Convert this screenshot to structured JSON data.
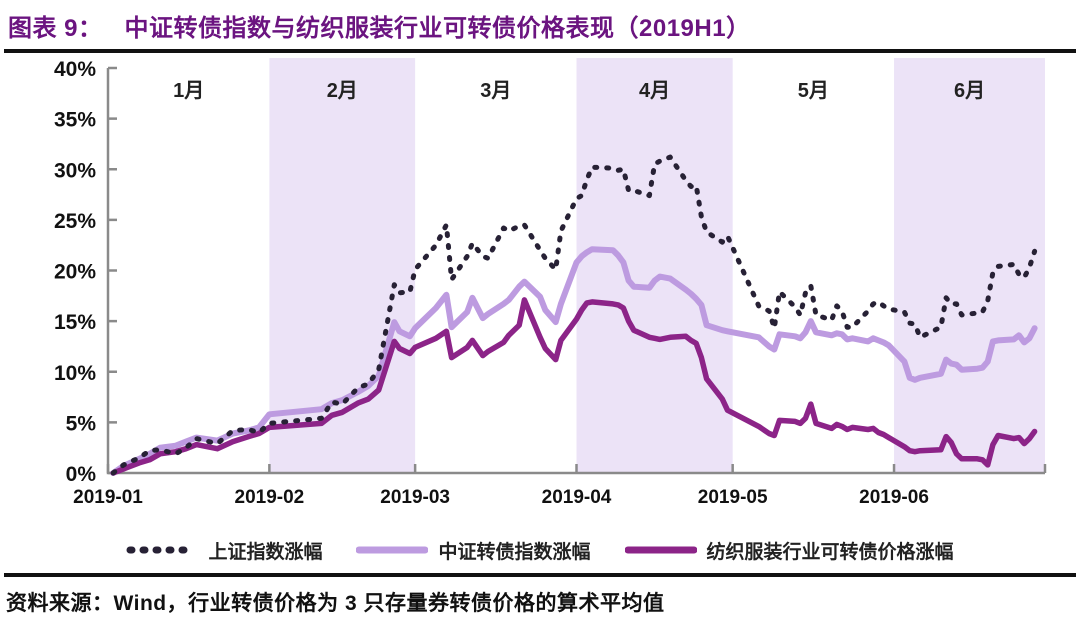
{
  "header": {
    "label": "图表 9：",
    "title": "中证转债指数与纺织服装行业可转债价格表现（2019H1）"
  },
  "chart_data": {
    "type": "line",
    "title": "中证转债指数与纺织服装行业可转债价格表现（2019H1）",
    "xlabel": "",
    "ylabel": "",
    "ylim": [
      0,
      40
    ],
    "ytick_step": 5,
    "ytick_suffix": "%",
    "grid": false,
    "legend_position": "bottom",
    "x_domain_days": [
      0,
      180
    ],
    "month_boundaries_days": [
      0,
      31,
      59,
      90,
      120,
      151,
      180
    ],
    "month_labels": [
      "1月",
      "2月",
      "3月",
      "4月",
      "5月",
      "6月"
    ],
    "x_tick_labels": [
      "2019-01",
      "2019-02",
      "2019-03",
      "2019-04",
      "2019-05",
      "2019-06"
    ],
    "shaded_band_day_ranges": [
      [
        31,
        59
      ],
      [
        90,
        120
      ],
      [
        151,
        180
      ]
    ],
    "band_color": "#ece3f7",
    "axis_color": "#8a8a8a",
    "tick_label_color": "#111111",
    "dates": [
      "01-02",
      "01-04",
      "01-07",
      "01-09",
      "01-11",
      "01-14",
      "01-16",
      "01-18",
      "01-22",
      "01-25",
      "01-28",
      "01-30",
      "02-01",
      "02-11",
      "02-13",
      "02-15",
      "02-18",
      "02-20",
      "02-22",
      "02-25",
      "02-26",
      "02-28",
      "03-01",
      "03-05",
      "03-07",
      "03-08",
      "03-11",
      "03-12",
      "03-14",
      "03-15",
      "03-18",
      "03-19",
      "03-21",
      "03-22",
      "03-25",
      "03-26",
      "03-28",
      "03-29",
      "04-01",
      "04-02",
      "04-03",
      "04-04",
      "04-08",
      "04-09",
      "04-10",
      "04-11",
      "04-12",
      "04-15",
      "04-16",
      "04-17",
      "04-19",
      "04-22",
      "04-23",
      "04-24",
      "04-25",
      "04-26",
      "04-29",
      "04-30",
      "05-06",
      "05-08",
      "05-09",
      "05-10",
      "05-13",
      "05-14",
      "05-15",
      "05-16",
      "05-17",
      "05-20",
      "05-21",
      "05-22",
      "05-23",
      "05-24",
      "05-27",
      "05-28",
      "05-29",
      "05-30",
      "05-31",
      "06-03",
      "06-04",
      "06-05",
      "06-06",
      "06-10",
      "06-11",
      "06-12",
      "06-13",
      "06-14",
      "06-17",
      "06-18",
      "06-19",
      "06-20",
      "06-21",
      "06-24",
      "06-25",
      "06-26",
      "06-27",
      "06-28"
    ],
    "series": [
      {
        "name": "上证指数涨幅",
        "color": "#272135",
        "style": "dashed",
        "width": 5,
        "values": [
          0.0,
          0.8,
          1.5,
          2.2,
          2.3,
          1.9,
          2.5,
          3.4,
          2.9,
          4.2,
          4.3,
          4.0,
          4.9,
          5.4,
          7.0,
          6.8,
          8.4,
          8.8,
          10.2,
          18.6,
          17.8,
          17.9,
          20.1,
          22.5,
          24.5,
          19.1,
          21.4,
          22.7,
          21.4,
          21.2,
          24.2,
          23.9,
          24.4,
          24.5,
          22.0,
          21.2,
          20.1,
          23.9,
          27.1,
          27.4,
          29.0,
          30.2,
          30.1,
          29.9,
          30.0,
          27.9,
          27.9,
          27.4,
          30.5,
          30.8,
          31.2,
          28.9,
          28.3,
          28.4,
          25.3,
          23.8,
          22.8,
          23.4,
          16.5,
          16.0,
          14.3,
          17.9,
          16.4,
          15.6,
          17.8,
          18.5,
          15.6,
          15.1,
          16.5,
          16.0,
          14.4,
          14.4,
          16.0,
          16.7,
          16.9,
          16.5,
          16.2,
          15.9,
          14.8,
          14.7,
          13.4,
          14.4,
          17.3,
          16.7,
          16.7,
          15.6,
          15.8,
          15.9,
          17.0,
          19.8,
          20.4,
          20.6,
          19.6,
          19.3,
          20.3,
          21.9
        ]
      },
      {
        "name": "中证转债指数涨幅",
        "color": "#bd9be0",
        "style": "solid",
        "width": 6,
        "values": [
          0.0,
          0.7,
          1.4,
          1.9,
          2.5,
          2.7,
          3.1,
          3.5,
          3.2,
          3.9,
          4.2,
          4.5,
          5.8,
          6.3,
          6.9,
          7.2,
          8.0,
          8.6,
          9.6,
          14.9,
          14.0,
          13.5,
          14.3,
          16.3,
          17.6,
          14.4,
          15.9,
          17.3,
          15.3,
          15.7,
          16.7,
          17.1,
          18.4,
          18.9,
          17.4,
          16.1,
          14.9,
          16.7,
          20.8,
          21.4,
          21.8,
          22.1,
          22.0,
          21.5,
          20.8,
          19.0,
          18.4,
          18.3,
          19.0,
          19.4,
          19.2,
          18.1,
          17.7,
          17.2,
          16.6,
          14.6,
          14.1,
          14.0,
          13.4,
          12.5,
          12.2,
          13.7,
          13.5,
          13.3,
          13.9,
          15.0,
          13.9,
          13.6,
          13.8,
          13.7,
          13.2,
          13.3,
          13.0,
          13.3,
          13.1,
          12.9,
          12.6,
          11.0,
          9.4,
          9.2,
          9.4,
          9.8,
          11.2,
          10.8,
          10.7,
          10.2,
          10.3,
          10.4,
          11.0,
          13.0,
          13.1,
          13.2,
          13.6,
          12.9,
          13.3,
          14.3
        ]
      },
      {
        "name": "纺织服装行业可转债价格涨幅",
        "color": "#8c2488",
        "style": "solid",
        "width": 5.5,
        "values": [
          0.0,
          0.4,
          1.0,
          1.3,
          1.9,
          2.1,
          2.4,
          2.8,
          2.4,
          3.1,
          3.6,
          3.9,
          4.5,
          4.9,
          5.7,
          6.0,
          6.9,
          7.3,
          8.2,
          13.0,
          12.3,
          11.8,
          12.4,
          13.3,
          14.0,
          11.4,
          12.4,
          13.1,
          11.6,
          12.0,
          12.9,
          13.6,
          14.6,
          17.1,
          13.4,
          12.3,
          11.2,
          13.1,
          15.2,
          16.1,
          16.8,
          16.9,
          16.7,
          16.6,
          16.3,
          15.0,
          14.1,
          13.4,
          13.3,
          13.2,
          13.4,
          13.5,
          13.1,
          12.8,
          11.4,
          9.3,
          7.3,
          6.2,
          4.6,
          3.9,
          3.7,
          5.2,
          5.1,
          4.9,
          5.4,
          6.8,
          4.9,
          4.4,
          4.8,
          4.6,
          4.3,
          4.5,
          4.3,
          4.4,
          4.0,
          3.8,
          3.5,
          2.6,
          2.2,
          2.1,
          2.2,
          2.3,
          3.6,
          3.0,
          1.9,
          1.4,
          1.4,
          1.3,
          0.8,
          2.8,
          3.7,
          3.4,
          3.5,
          2.9,
          3.4,
          4.1
        ]
      }
    ]
  },
  "footer": {
    "source": "资料来源：Wind，行业转债价格为 3 只存量券转债价格的算术平均值"
  }
}
